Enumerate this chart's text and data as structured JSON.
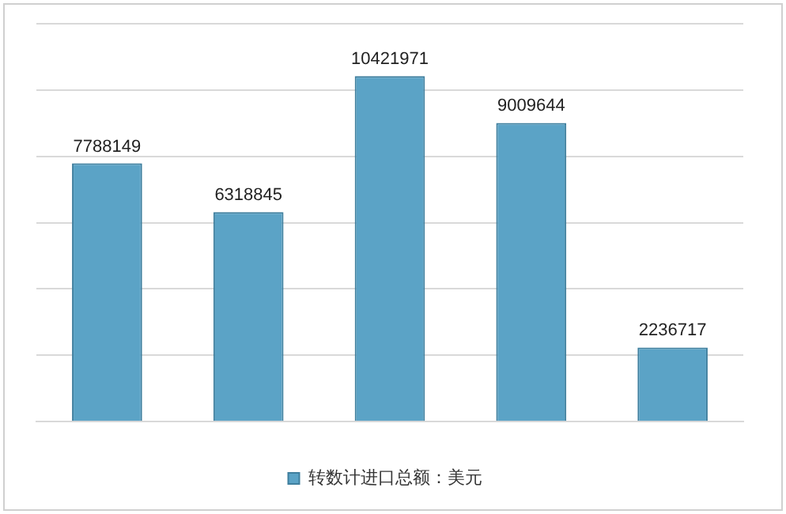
{
  "chart_data": {
    "type": "bar",
    "categories": [
      null,
      null,
      null,
      null,
      null
    ],
    "series": [
      {
        "name": "转数计进口总额：美元",
        "color": "#5ba3c6",
        "values": [
          7788149,
          6318845,
          10421971,
          9009644,
          2236717
        ]
      }
    ],
    "ylim": [
      0,
      12000000
    ],
    "yticks": [
      {
        "value": 0,
        "label": null
      },
      {
        "value": 2000000,
        "label": null
      },
      {
        "value": 4000000,
        "label": null
      },
      {
        "value": 6000000,
        "label": null
      },
      {
        "value": 8000000,
        "label": null
      },
      {
        "value": 10000000,
        "label": null
      },
      {
        "value": 12000000,
        "label": null
      }
    ],
    "grid": "y",
    "legend": "bottom",
    "data_labels": true
  }
}
